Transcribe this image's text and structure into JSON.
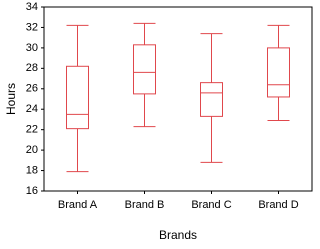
{
  "chart_data": {
    "type": "box",
    "x_label": "Brands",
    "y_label": "Hours",
    "categories": [
      "Brand A",
      "Brand B",
      "Brand C",
      "Brand D"
    ],
    "min": [
      17.9,
      22.3,
      18.8,
      22.9
    ],
    "q1": [
      22.1,
      25.5,
      23.3,
      25.2
    ],
    "median": [
      23.5,
      27.6,
      25.6,
      26.4
    ],
    "q3": [
      28.2,
      30.3,
      26.6,
      30.0
    ],
    "max": [
      32.2,
      32.4,
      31.4,
      32.2
    ],
    "color": "#e0474c",
    "ylim": [
      16,
      34
    ],
    "yticks": [
      16,
      18,
      20,
      22,
      24,
      26,
      28,
      30,
      32,
      34
    ]
  }
}
